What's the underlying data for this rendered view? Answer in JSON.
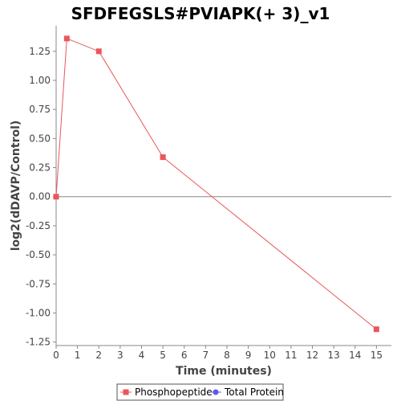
{
  "chart_data": {
    "type": "line",
    "title": "SFDFEGSLS#PVIAPK(+ 3)_v1",
    "xlabel": "Time (minutes)",
    "ylabel": "log2(dDAVP/Control)",
    "xlim": [
      0,
      15.7
    ],
    "ylim": [
      -1.28,
      1.47
    ],
    "x_ticks": [
      0,
      1,
      2,
      3,
      4,
      5,
      6,
      7,
      8,
      9,
      10,
      11,
      12,
      13,
      14,
      15
    ],
    "y_ticks": [
      -1.25,
      -1.0,
      -0.75,
      -0.5,
      -0.25,
      0.0,
      0.25,
      0.5,
      0.75,
      1.0,
      1.25
    ],
    "y_tick_labels": [
      "-1.25",
      "-1.00",
      "-0.75",
      "-0.50",
      "-0.25",
      "0.00",
      "0.25",
      "0.50",
      "0.75",
      "1.00",
      "1.25"
    ],
    "zero_line": true,
    "grid": false,
    "legend_position": "bottom-center",
    "series": [
      {
        "name": "Phosphopeptide",
        "color": "#e8575a",
        "marker": "square",
        "x": [
          0,
          0.5,
          2,
          5,
          15
        ],
        "y": [
          0.0,
          1.36,
          1.25,
          0.34,
          -1.14
        ]
      },
      {
        "name": "Total Protein",
        "color": "#5b5bea",
        "marker": "circle",
        "x": [],
        "y": []
      }
    ]
  }
}
